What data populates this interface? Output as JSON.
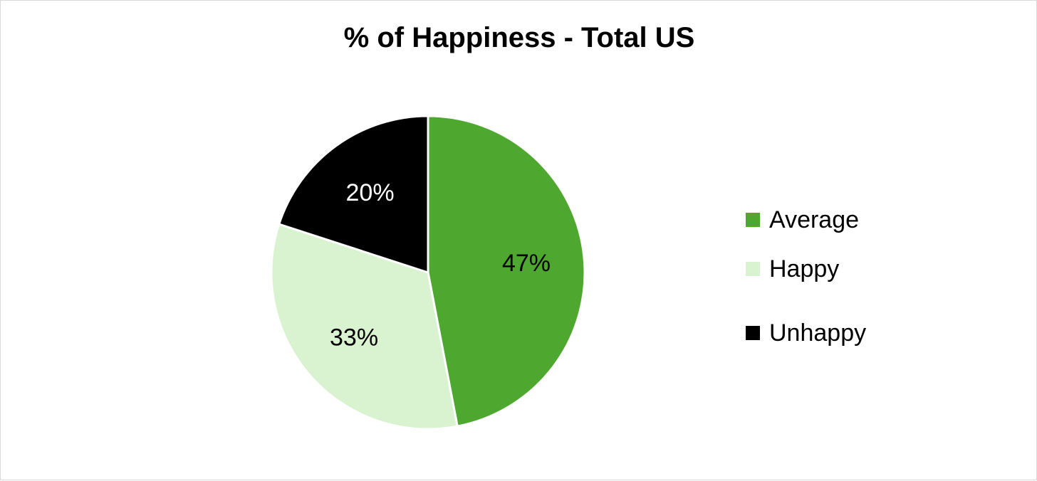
{
  "chart_data": {
    "type": "pie",
    "title": "% of Happiness - Total US",
    "slices": [
      {
        "label": "Average",
        "value": 47,
        "display": "47%",
        "color": "#4ea72e",
        "label_color": "#000000"
      },
      {
        "label": "Happy",
        "value": 33,
        "display": "33%",
        "color": "#d9f2d0",
        "label_color": "#000000"
      },
      {
        "label": "Unhappy",
        "value": 20,
        "display": "20%",
        "color": "#000000",
        "label_color": "#ffffff"
      }
    ],
    "start": "12 o'clock",
    "direction": "clockwise",
    "legend_position": "right"
  }
}
